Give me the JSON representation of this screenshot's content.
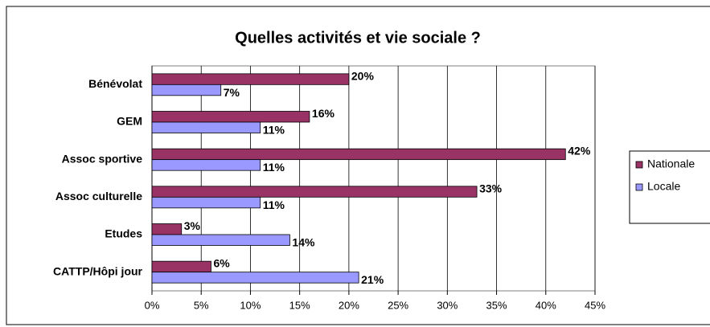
{
  "chart_data": {
    "type": "hbar",
    "title": "Quelles activités et vie sociale ?",
    "categories": [
      "Bénévolat",
      "GEM",
      "Assoc sportive",
      "Assoc culturelle",
      "Etudes",
      "CATTP/Hôpi jour"
    ],
    "series": [
      {
        "name": "Nationale",
        "color": "#993366",
        "values": [
          20,
          16,
          42,
          33,
          3,
          6
        ],
        "value_labels": [
          "20%",
          "16%",
          "42%",
          "33%",
          "3%",
          "6%"
        ]
      },
      {
        "name": "Locale",
        "color": "#9999ff",
        "values": [
          7,
          11,
          11,
          11,
          14,
          21
        ],
        "value_labels": [
          "7%",
          "11%",
          "11%",
          "11%",
          "14%",
          "21%"
        ]
      }
    ],
    "xlim": [
      0,
      45
    ],
    "xticks": [
      {
        "value": 0,
        "label": "0%"
      },
      {
        "value": 5,
        "label": "5%"
      },
      {
        "value": 10,
        "label": "10%"
      },
      {
        "value": 15,
        "label": "15%"
      },
      {
        "value": 20,
        "label": "20%"
      },
      {
        "value": 25,
        "label": "25%"
      },
      {
        "value": 30,
        "label": "30%"
      },
      {
        "value": 35,
        "label": "35%"
      },
      {
        "value": 40,
        "label": "40%"
      },
      {
        "value": 45,
        "label": "45%"
      }
    ],
    "grid": true,
    "legend": "right"
  }
}
